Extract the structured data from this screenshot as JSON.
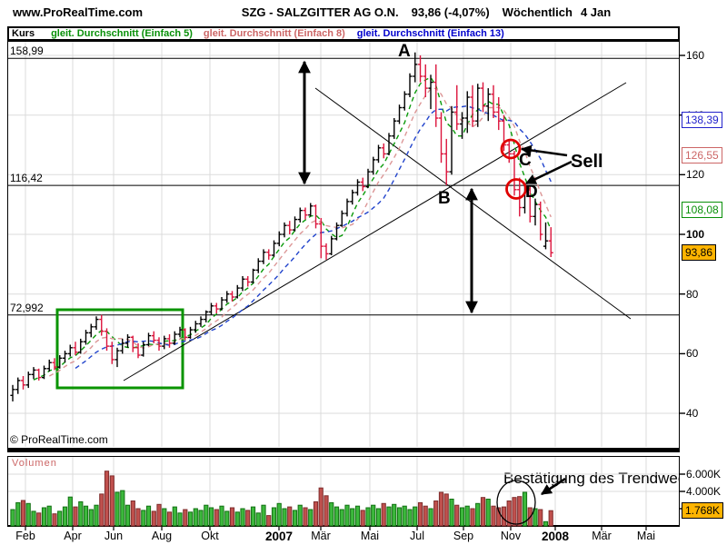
{
  "header": {
    "site": "www.ProRealTime.com",
    "symbol": "SZG - SALZGITTER AG O.N.",
    "quote": "93,86 (-4,07%)",
    "period": "Wöchentlich",
    "date": "4 Jan"
  },
  "legend": {
    "price_series": "Kurs",
    "ma5": "gleit. Durchschnitt (Einfach 5)",
    "ma8": "gleit. Durchschnitt (Einfach 8)",
    "ma13": "gleit. Durchschnitt (Einfach 13)"
  },
  "annotations": {
    "a": "A",
    "b": "B",
    "c": "C",
    "d": "D",
    "sell": "Sell",
    "volume_note": "Bestätigung des Trendwechsels"
  },
  "copyright": "© ProRealTime.com",
  "volume_label": "Volumen",
  "colors": {
    "up": "#000000",
    "down": "#DC143C",
    "ma5": "#0A9A0A",
    "ma8": "#DC9696",
    "ma13": "#2244CC",
    "legend_ma5": "#089008",
    "legend_ma8": "#CC6666",
    "legend_ma13": "#0000CC",
    "vol_up_fill": "#3CB83C",
    "vol_up_stroke": "#127012",
    "vol_down_fill": "#C0504D",
    "vol_down_stroke": "#7E2D2D",
    "last_price_bg": "#FFB400",
    "grid": "#DBDBDB",
    "annotation_red": "#E00000",
    "box_green": "#0A9400"
  },
  "price_level_labels": [
    {
      "text": "158,99",
      "value": 158.99
    },
    {
      "text": "116,42",
      "value": 116.42
    },
    {
      "text": "72,992",
      "value": 72.992
    }
  ],
  "ma_price_labels": [
    {
      "text": "138,39",
      "value": 138.39,
      "color": "#2222CC",
      "bg": "#FFFFFF",
      "role": "ma13"
    },
    {
      "text": "126,55",
      "value": 126.55,
      "color": "#CC6666",
      "bg": "#FFFFFF",
      "role": "ma8"
    },
    {
      "text": "108,08",
      "value": 108.08,
      "color": "#089008",
      "bg": "#FFFFFF",
      "role": "ma5"
    },
    {
      "text": "93,86",
      "value": 93.86,
      "color": "#000000",
      "bg": "#FFB400",
      "role": "last-price"
    }
  ],
  "y_axis": {
    "ticks": [
      160,
      140,
      120,
      100,
      80,
      60,
      40
    ],
    "bold_tick": 100
  },
  "volume_axis": {
    "ticks": [
      {
        "text": "6.000K",
        "value": 6000
      },
      {
        "text": "4.000K",
        "value": 4000
      }
    ],
    "last": {
      "text": "1.768K",
      "value": 1768
    }
  },
  "x_axis": {
    "labels": [
      "Feb",
      "Apr",
      "Jun",
      "Aug",
      "Okt",
      "2007",
      "Mär",
      "Mai",
      "Jul",
      "Sep",
      "Nov",
      "2008",
      "Mär",
      "Mai"
    ]
  },
  "chart_data": {
    "type": "ohlc+volume",
    "instrument": "SZG - SALZGITTER AG O.N.",
    "timeframe": "weekly",
    "last_close": 93.86,
    "change_pct": -4.07,
    "levels": [
      158.99,
      116.42,
      72.992
    ],
    "ma_periods": [
      5,
      8,
      13
    ],
    "ylim": [
      29,
      165
    ],
    "y_ticks": [
      160,
      140,
      120,
      100,
      80,
      60,
      40
    ],
    "volume_ticks_k": [
      6000,
      4000
    ],
    "last_volume_k": 1768,
    "bars_format": [
      "open",
      "high",
      "low",
      "close",
      "volume_K"
    ],
    "bars": [
      [
        46,
        49.5,
        44,
        48,
        1900
      ],
      [
        48,
        52,
        46.5,
        51,
        2700
      ],
      [
        51,
        52.5,
        48,
        49.5,
        2950
      ],
      [
        49.5,
        54,
        48.5,
        53,
        2600
      ],
      [
        53,
        55.5,
        51.5,
        54.5,
        1700
      ],
      [
        54.5,
        55,
        51,
        52,
        1500
      ],
      [
        52,
        56,
        51.5,
        55,
        2100
      ],
      [
        55,
        58,
        54,
        57,
        2300
      ],
      [
        57,
        58.5,
        54.5,
        55.5,
        1400
      ],
      [
        55.5,
        59.5,
        55,
        58.5,
        1700
      ],
      [
        58.5,
        61,
        57,
        60,
        2200
      ],
      [
        60,
        63,
        59,
        62,
        3350
      ],
      [
        62,
        64,
        59.5,
        60.5,
        2200
      ],
      [
        60.5,
        65,
        60,
        64,
        2800
      ],
      [
        64,
        68,
        63,
        67,
        2300
      ],
      [
        67,
        70,
        65.5,
        69,
        1900
      ],
      [
        69,
        72.5,
        68,
        71.5,
        2400
      ],
      [
        71.5,
        73,
        66,
        67.5,
        3700
      ],
      [
        67.5,
        68.5,
        61,
        62.5,
        6350
      ],
      [
        62.5,
        64,
        56.5,
        58,
        5800
      ],
      [
        58,
        62,
        55.5,
        61,
        3900
      ],
      [
        61,
        65,
        60,
        63.5,
        4100
      ],
      [
        63.5,
        66.5,
        62,
        65.5,
        2400
      ],
      [
        65.5,
        66,
        60.5,
        62,
        2900
      ],
      [
        62,
        63.5,
        58.5,
        59.5,
        2000
      ],
      [
        59.5,
        64,
        59,
        63,
        1800
      ],
      [
        63,
        67,
        62.5,
        66,
        2300
      ],
      [
        66,
        67.5,
        63.5,
        64.5,
        1700
      ],
      [
        64.5,
        65.5,
        61,
        62.5,
        2500
      ],
      [
        62.5,
        66,
        61.5,
        65,
        2000
      ],
      [
        65,
        66.5,
        62,
        63.5,
        1600
      ],
      [
        63.5,
        67.5,
        63,
        66.5,
        2200
      ],
      [
        66.5,
        69,
        65.5,
        68,
        1500
      ],
      [
        68,
        68.5,
        64.5,
        65.5,
        1900
      ],
      [
        65.5,
        69,
        65,
        68,
        1600
      ],
      [
        68,
        71,
        67,
        70,
        2000
      ],
      [
        70,
        72.5,
        69,
        71.5,
        1800
      ],
      [
        71.5,
        74.5,
        70.5,
        74,
        2400
      ],
      [
        74,
        77,
        73,
        76,
        2100
      ],
      [
        76,
        77,
        73.5,
        75,
        1900
      ],
      [
        75,
        79,
        74.5,
        78,
        2300
      ],
      [
        78,
        81,
        77,
        80,
        1700
      ],
      [
        80,
        81,
        77.5,
        79,
        2100
      ],
      [
        79,
        83,
        78.5,
        82,
        1600
      ],
      [
        82,
        86,
        81,
        85,
        2000
      ],
      [
        85,
        86,
        82.5,
        84,
        1800
      ],
      [
        84,
        88.5,
        83.5,
        88,
        2200
      ],
      [
        88,
        92,
        87,
        91,
        1500
      ],
      [
        91,
        95,
        90,
        94,
        2400
      ],
      [
        94,
        95,
        91.5,
        93,
        1200
      ],
      [
        93,
        98,
        92.5,
        97,
        2100
      ],
      [
        97,
        101,
        96,
        100,
        2600
      ],
      [
        100,
        104,
        99,
        103,
        2000
      ],
      [
        103,
        104.5,
        100,
        101.5,
        2200
      ],
      [
        101.5,
        106,
        101,
        105,
        1800
      ],
      [
        105,
        109,
        104,
        108,
        2400
      ],
      [
        108,
        109,
        105,
        106.5,
        2100
      ],
      [
        106.5,
        110.5,
        106,
        109.5,
        1900
      ],
      [
        109.5,
        110,
        102,
        103.5,
        2800
      ],
      [
        103.5,
        105.5,
        92,
        96,
        4400
      ],
      [
        96,
        97,
        91.5,
        93.5,
        3500
      ],
      [
        93.5,
        99.5,
        93,
        98.5,
        2700
      ],
      [
        98.5,
        104,
        98,
        103,
        2200
      ],
      [
        103,
        108,
        102.5,
        107,
        1900
      ],
      [
        107,
        112,
        106,
        111,
        2400
      ],
      [
        111,
        115,
        110,
        114,
        2000
      ],
      [
        114,
        118.5,
        113,
        117.5,
        2300
      ],
      [
        117.5,
        119,
        114.5,
        116,
        1800
      ],
      [
        116,
        122,
        115.5,
        121,
        2100
      ],
      [
        121,
        126,
        120,
        125,
        2400
      ],
      [
        125,
        130,
        124,
        129,
        2000
      ],
      [
        129,
        130.5,
        125.5,
        127,
        2600
      ],
      [
        127,
        134,
        126.5,
        133,
        2200
      ],
      [
        133,
        139,
        132,
        138,
        2500
      ],
      [
        138,
        143.5,
        137,
        142.5,
        2100
      ],
      [
        142.5,
        148,
        141.5,
        147,
        2300
      ],
      [
        147,
        154,
        146,
        153,
        1900
      ],
      [
        153,
        161,
        151,
        157,
        2200
      ],
      [
        157,
        160,
        151,
        153,
        2700
      ],
      [
        153,
        157,
        146,
        149,
        2300
      ],
      [
        149,
        153.5,
        142,
        151,
        2000
      ],
      [
        151,
        157,
        136,
        139,
        2900
      ],
      [
        139,
        141,
        124,
        127,
        3900
      ],
      [
        127,
        132,
        116.5,
        121,
        3700
      ],
      [
        121,
        143,
        120,
        141,
        3100
      ],
      [
        141,
        150,
        135,
        137,
        2400
      ],
      [
        137,
        141,
        132,
        139,
        2100
      ],
      [
        139,
        148,
        134,
        146,
        2300
      ],
      [
        146,
        150,
        136,
        138,
        2000
      ],
      [
        138,
        150.5,
        136,
        149,
        2600
      ],
      [
        149,
        151,
        141,
        143,
        3300
      ],
      [
        143,
        149,
        138,
        147,
        3100
      ],
      [
        147,
        150,
        139,
        141,
        2300
      ],
      [
        141,
        146,
        135,
        138,
        2100
      ],
      [
        138,
        140,
        128,
        130,
        2200
      ],
      [
        130,
        132,
        124,
        127,
        2900
      ],
      [
        127,
        128,
        113,
        115,
        3300
      ],
      [
        115,
        119,
        106,
        109,
        3400
      ],
      [
        109,
        117,
        107,
        115,
        3900
      ],
      [
        115,
        116,
        104,
        106,
        2100
      ],
      [
        106,
        112,
        103,
        110,
        2000
      ],
      [
        110,
        111,
        98,
        100,
        1900
      ],
      [
        96,
        104,
        95,
        97.8,
        500
      ],
      [
        97.8,
        102.4,
        92.4,
        93.86,
        1768
      ]
    ]
  }
}
